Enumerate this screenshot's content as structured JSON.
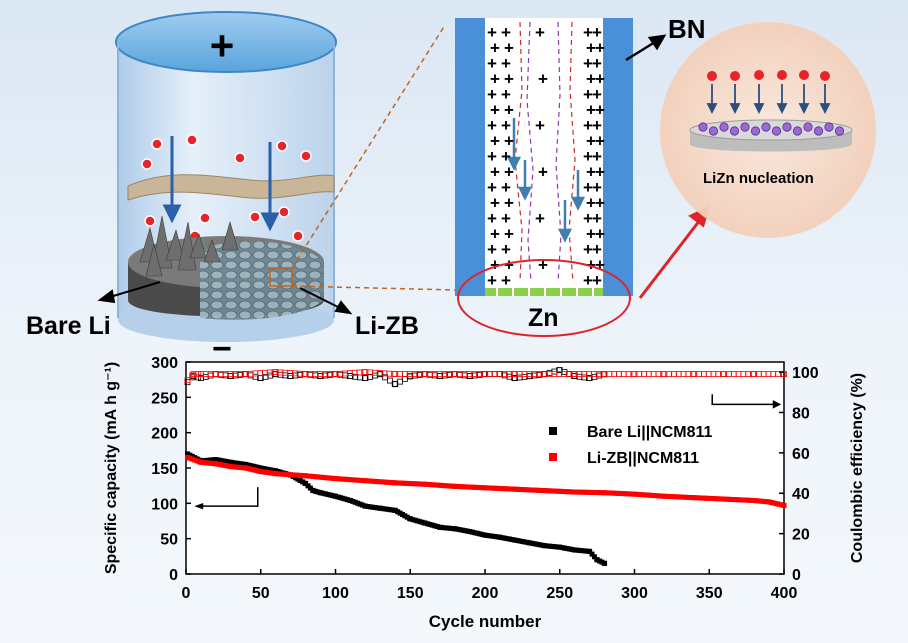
{
  "schematic": {
    "plus_sign": "+",
    "minus_sign": "−",
    "bare_li_label": "Bare Li",
    "li_zb_label": "Li-ZB",
    "bn_label": "BN",
    "zn_label": "Zn",
    "nucleation_label": "LiZn nucleation",
    "colors": {
      "ion": "#e8232a",
      "arrow": "#2b5fa8",
      "zn": "#8ccf4d",
      "bn": "#4a90d9",
      "zoom": "#c0651f",
      "nucleation_bg": "#f6dccb"
    }
  },
  "chart_data": {
    "type": "scatter",
    "xlabel": "Cycle number",
    "ylabel_left": "Specific capacity (mA h g⁻¹)",
    "ylabel_right": "Coulombic efficiency (%)",
    "xlim": [
      0,
      400
    ],
    "ylim_left": [
      0,
      300
    ],
    "ylim_right": [
      0,
      105
    ],
    "x_ticks": [
      0,
      50,
      100,
      150,
      200,
      250,
      300,
      350,
      400
    ],
    "y_ticks_left": [
      0,
      50,
      100,
      150,
      200,
      250,
      300
    ],
    "y_ticks_right": [
      0,
      20,
      40,
      60,
      80,
      100
    ],
    "legend": [
      {
        "name": "Bare Li||NCM811",
        "color": "#000000"
      },
      {
        "name": "Li-ZB||NCM811",
        "color": "#ff0000"
      }
    ],
    "legend_position": "center-right",
    "series": [
      {
        "name": "Bare Li||NCM811",
        "axis": "left",
        "marker": "filled-square",
        "color": "#000000",
        "x": [
          1,
          10,
          20,
          30,
          40,
          50,
          60,
          70,
          80,
          85,
          90,
          100,
          110,
          120,
          130,
          140,
          150,
          160,
          170,
          180,
          190,
          200,
          210,
          220,
          230,
          240,
          250,
          260,
          270,
          275,
          280
        ],
        "values": [
          170,
          160,
          162,
          158,
          155,
          150,
          146,
          140,
          128,
          118,
          115,
          110,
          104,
          96,
          93,
          90,
          78,
          72,
          66,
          64,
          60,
          55,
          52,
          48,
          44,
          40,
          38,
          34,
          32,
          20,
          15
        ]
      },
      {
        "name": "Li-ZB||NCM811",
        "axis": "left",
        "marker": "filled-square",
        "color": "#ff0000",
        "x": [
          1,
          10,
          20,
          30,
          40,
          50,
          60,
          80,
          100,
          120,
          140,
          160,
          180,
          200,
          220,
          240,
          260,
          280,
          300,
          320,
          340,
          360,
          380,
          390,
          400
        ],
        "values": [
          165,
          158,
          156,
          152,
          150,
          145,
          142,
          139,
          135,
          132,
          129,
          127,
          124,
          122,
          120,
          118,
          116,
          115,
          113,
          110,
          108,
          106,
          104,
          102,
          97
        ]
      },
      {
        "name": "Bare Li||NCM811 CE",
        "axis": "right",
        "marker": "open-square",
        "color": "#000000",
        "x": [
          1,
          5,
          10,
          20,
          30,
          40,
          50,
          60,
          70,
          80,
          90,
          100,
          110,
          120,
          130,
          140,
          150,
          160,
          170,
          180,
          190,
          200,
          210,
          220,
          230,
          240,
          250,
          260,
          270,
          280
        ],
        "values": [
          95,
          98,
          97,
          99,
          98,
          99,
          97,
          99,
          98,
          99,
          98,
          99,
          98,
          97,
          99,
          94,
          98,
          99,
          98,
          99,
          98,
          99,
          99,
          97,
          98,
          99,
          101,
          98,
          97,
          99
        ]
      },
      {
        "name": "Li-ZB||NCM811 CE",
        "axis": "right",
        "marker": "open-square",
        "color": "#ff0000",
        "x": [
          1,
          5,
          10,
          20,
          40,
          60,
          80,
          100,
          120,
          140,
          160,
          180,
          200,
          220,
          240,
          260,
          280,
          300,
          320,
          340,
          360,
          380,
          400
        ],
        "values": [
          96,
          99,
          99,
          99,
          99,
          100,
          99,
          99,
          100,
          99,
          99,
          99,
          99,
          99,
          99,
          99,
          99,
          99,
          99,
          99,
          99,
          99,
          99
        ]
      }
    ]
  }
}
